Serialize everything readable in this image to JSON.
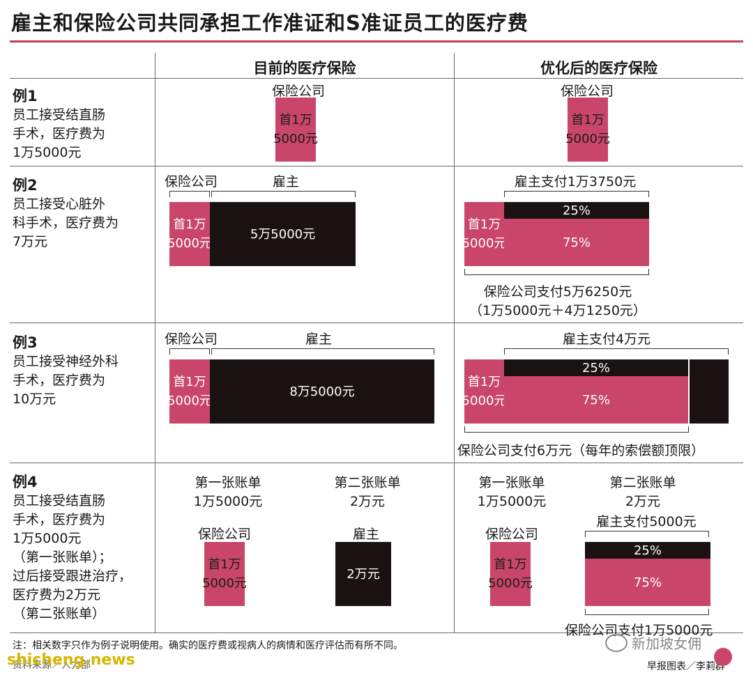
{
  "title": "雇主和保险公司共同承担工作准证和S准证员工的医疗费",
  "columns": {
    "current": "目前的医疗保险",
    "optimized": "优化后的医疗保险"
  },
  "examples": [
    {
      "label": "例1",
      "desc": [
        "员工接受结直肠",
        "手术，医疗费为",
        "1万5000元"
      ]
    },
    {
      "label": "例2",
      "desc": [
        "员工接受心脏外",
        "科手术，医疗费为",
        "7万元"
      ]
    },
    {
      "label": "例3",
      "desc": [
        "员工接受神经外科",
        "手术，医疗费为",
        "10万元"
      ]
    },
    {
      "label": "例4",
      "desc": [
        "员工接受结直肠",
        "手术，医疗费为",
        "1万5000元",
        "（第一张账单）；",
        "过后接受跟进治疗，",
        "医疗费为2万元",
        "（第二张账单）"
      ]
    }
  ],
  "labels": {
    "insurer": "保险公司",
    "employer": "雇主",
    "first_line1": "首1万",
    "first_line2": "5000元",
    "pct25": "25%",
    "pct75": "75%",
    "bill1": "第一张账单",
    "bill2": "第二张账单"
  },
  "ex2": {
    "employer_amount": "5万5000元",
    "employer_pays": "雇主支付1万3750元",
    "insurer_pays": "保险公司支付5万6250元",
    "insurer_detail": "（1万5000元＋4万1250元）"
  },
  "ex3": {
    "employer_amount": "8万5000元",
    "employer_pays": "雇主支付4万元",
    "insurer_pays": "保险公司支付6万元（每年的索偿额顶限）"
  },
  "ex4": {
    "bill1_amount": "1万5000元",
    "bill2_amount": "2万元",
    "employer_amount": "2万元",
    "employer_pays": "雇主支付5000元",
    "insurer_pays": "保险公司支付1万5000元"
  },
  "footer": {
    "note": "注：相关数字只作为例子说明使用。确实的医疗费或视病人的病情和医疗评估而有所不同。",
    "source": "资料来源／人力部",
    "credit": "早报图表／李莉群",
    "watermark_left": "shicheng.news",
    "watermark_right": "新加坡女佣"
  },
  "colors": {
    "pink": "#c9466a",
    "black": "#1a1212",
    "accent_rule": "#c4405f"
  }
}
